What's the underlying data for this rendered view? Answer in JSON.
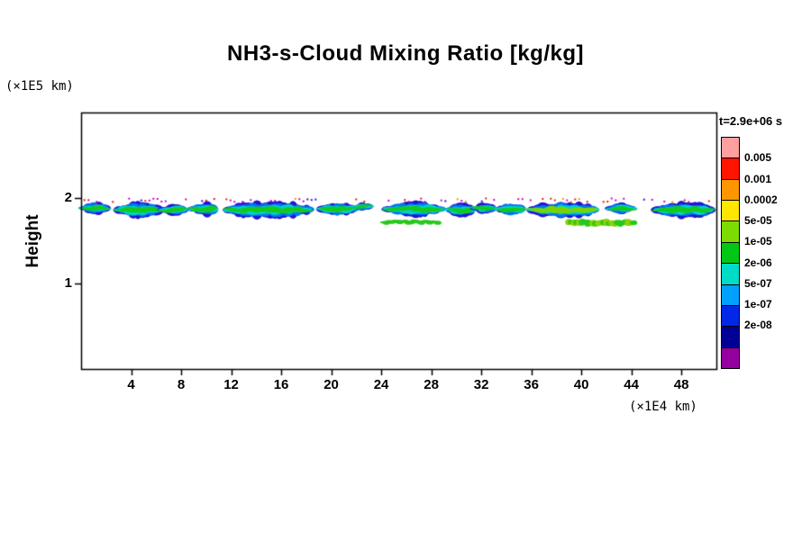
{
  "title": "NH3-s-Cloud Mixing Ratio [kg/kg]",
  "axes": {
    "y_label": "Height",
    "y_unit": "(×1E5 km)",
    "x_unit": "(×1E4 km)",
    "x_ticks": [
      4,
      8,
      12,
      16,
      20,
      24,
      28,
      32,
      36,
      40,
      44,
      48
    ],
    "y_ticks": [
      1,
      2
    ]
  },
  "legend": {
    "time_label": "t=2.9e+06 s",
    "labels": [
      "0.005",
      "0.001",
      "0.0002",
      "5e-05",
      "1e-05",
      "2e-06",
      "5e-07",
      "1e-07",
      "2e-08"
    ],
    "colors_top_to_bottom": [
      "#ffa0a0",
      "#ff1400",
      "#ff9600",
      "#ffe600",
      "#7cdc00",
      "#00c814",
      "#00dcc8",
      "#00a0ff",
      "#0028e6",
      "#000096",
      "#9600a0"
    ]
  },
  "chart_data": {
    "type": "heatmap",
    "title": "NH3-s-Cloud Mixing Ratio [kg/kg]",
    "xlabel": "(×1E4 km)",
    "ylabel": "Height (×1E5 km)",
    "xlim": [
      0,
      50.8
    ],
    "ylim": [
      0,
      3.0
    ],
    "xticks": [
      4,
      8,
      12,
      16,
      20,
      24,
      28,
      32,
      36,
      40,
      44,
      48
    ],
    "yticks": [
      1,
      2
    ],
    "grid": false,
    "legend_position": "right",
    "time_label": "t=2.9e+06 s",
    "levels_low_to_high": [
      2e-08,
      1e-07,
      5e-07,
      2e-06,
      1e-05,
      5e-05,
      0.0002,
      0.001,
      0.005
    ],
    "level_colors_low_to_high": [
      "#9600a0",
      "#000096",
      "#0028e6",
      "#00a0ff",
      "#00dcc8",
      "#00c814",
      "#7cdc00",
      "#ffe600",
      "#ff9600",
      "#ff1400",
      "#ffa0a0"
    ],
    "cloud_bands": [
      {
        "x1": 0.3,
        "x2": 1.9,
        "y": 1.88,
        "h": 0.75
      },
      {
        "x1": 3.1,
        "x2": 6.2,
        "y": 1.86,
        "h": 0.95
      },
      {
        "x1": 6.6,
        "x2": 8.3,
        "y": 1.86,
        "h": 0.7
      },
      {
        "x1": 9.0,
        "x2": 10.8,
        "y": 1.87,
        "h": 0.85
      },
      {
        "x1": 11.9,
        "x2": 18.3,
        "y": 1.86,
        "h": 1.05
      },
      {
        "x1": 19.4,
        "x2": 21.7,
        "y": 1.87,
        "h": 0.9
      },
      {
        "x1": 22.1,
        "x2": 23.1,
        "y": 1.9,
        "h": 0.55
      },
      {
        "x1": 24.6,
        "x2": 28.7,
        "y": 1.87,
        "h": 0.9
      },
      {
        "x1": 29.6,
        "x2": 31.3,
        "y": 1.86,
        "h": 0.8
      },
      {
        "x1": 31.7,
        "x2": 32.9,
        "y": 1.88,
        "h": 0.65
      },
      {
        "x1": 33.6,
        "x2": 35.4,
        "y": 1.87,
        "h": 0.8
      },
      {
        "x1": 36.2,
        "x2": 41.1,
        "y": 1.86,
        "h": 1.0,
        "warm": true
      },
      {
        "x1": 42.5,
        "x2": 44.0,
        "y": 1.88,
        "h": 0.7
      },
      {
        "x1": 46.2,
        "x2": 50.4,
        "y": 1.86,
        "h": 0.95
      }
    ],
    "thin_streaks": [
      {
        "x1": 24.2,
        "x2": 28.7,
        "y": 1.72,
        "h": 1.0
      },
      {
        "x1": 39.0,
        "x2": 44.3,
        "y": 1.71,
        "h": 1.7,
        "warm": true
      }
    ],
    "speckle_line_y": 1.985
  }
}
